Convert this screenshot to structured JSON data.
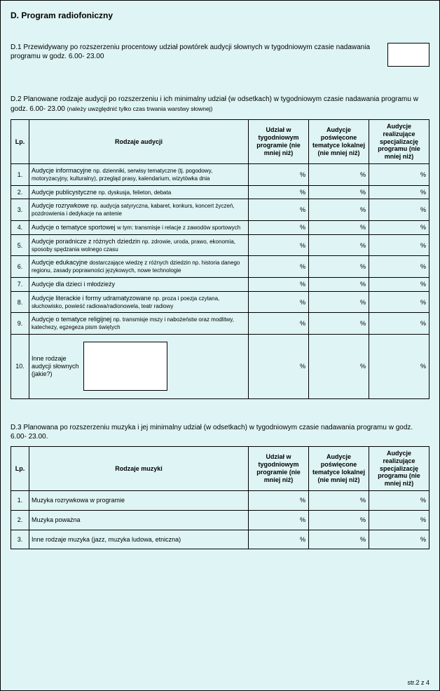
{
  "title": "D. Program radiofoniczny",
  "d1": {
    "text": "D.1  Przewidywany po rozszerzeniu  procentowy udział powtórek audycji słownych w tygodniowym czasie nadawania programu w godz. 6.00- 23.00",
    "value": ""
  },
  "d2": {
    "intro_a": "D.2 Planowane rodzaje audycji po rozszerzeniu i ich minimalny udział (w odsetkach) w tygodniowym czasie nadawania programu w godz. 6.00- 23.00 ",
    "intro_b": "(należy uwzględnić tylko czas trwania warstwy słownej)",
    "headers": {
      "lp": "Lp.",
      "rodzaje": "Rodzaje audycji",
      "col1": "Udział w tygodniowym programie (nie mniej niż)",
      "col2": "Audycje poświęcone tematyce lokalnej (nie mniej niż)",
      "col3": "Audycje realizujące specjalizację programu (nie mniej niż)"
    },
    "rows": [
      {
        "lp": "1.",
        "main": "Audycje informacyjne ",
        "sub": "np. dzienniki, serwisy tematyczne (tj. pogodowy, motoryzacyjny, kulturalny), przegląd prasy, kalendarium, wizytówka dnia"
      },
      {
        "lp": "2.",
        "main": "Audycje publicystyczne ",
        "sub": "np. dyskusja, felieton, debata"
      },
      {
        "lp": "3.",
        "main": "Audycje rozrywkowe  ",
        "sub": "np. audycja satyryczna, kabaret, konkurs, koncert życzeń, pozdrowienia i dedykacje na antenie"
      },
      {
        "lp": "4.",
        "main": "Audycje o tematyce sportowej  ",
        "sub": "w tym: transmisje i relacje z zawodów sportowych"
      },
      {
        "lp": "5.",
        "main": "Audycje poradnicze z różnych dziedzin ",
        "sub": "np. zdrowie, uroda, prawo, ekonomia, sposoby spędzania wolnego czasu"
      },
      {
        "lp": "6.",
        "main": "Audycje edukacyjne ",
        "sub": "dostarczające wiedzę z różnych dziedzin np. historia danego regionu, zasady poprawności językowych, nowe technologie"
      },
      {
        "lp": "7.",
        "main": "Audycje dla dzieci i młodzieży",
        "sub": ""
      },
      {
        "lp": "8.",
        "main": "Audycje literackie i formy udramatyzowane  ",
        "sub": "np. proza i poezja czytana, słuchowisko, powieść radiowa/radionowela, teatr radiowy"
      },
      {
        "lp": "9.",
        "main": "Audycje o tematyce religijnej ",
        "sub": "np. transmisje mszy i nabożeństw oraz modlitwy, katechezy, egzegeza pism świętych"
      }
    ],
    "row10": {
      "lp": "10.",
      "label": "Inne rodzaje audycji słownych (jakie?)",
      "value": ""
    },
    "pct_symbol": "%"
  },
  "d3": {
    "intro": "D.3 Planowana po rozszerzeniu muzyka i jej minimalny udział (w odsetkach) w tygodniowym czasie nadawania programu w godz. 6.00- 23.00.",
    "headers": {
      "lp": "Lp.",
      "rodzaje": "Rodzaje muzyki",
      "col1": "Udział w tygodniowym programie (nie mniej niż)",
      "col2": "Audycje poświęcone tematyce lokalnej (nie mniej niż)",
      "col3": "Audycje realizujące specjalizację programu (nie mniej niż)"
    },
    "rows": [
      {
        "lp": "1.",
        "label": "Muzyka rozrywkowa w programie"
      },
      {
        "lp": "2.",
        "label": "Muzyka poważna"
      },
      {
        "lp": "3.",
        "label": "Inne rodzaje  muzyka (jazz, muzyka ludowa, etniczna)"
      }
    ],
    "pct_symbol": "%"
  },
  "pager": "str.2 z 4",
  "colors": {
    "page_bg": "#dff4f4",
    "border": "#000000",
    "box_bg": "#ffffff"
  }
}
